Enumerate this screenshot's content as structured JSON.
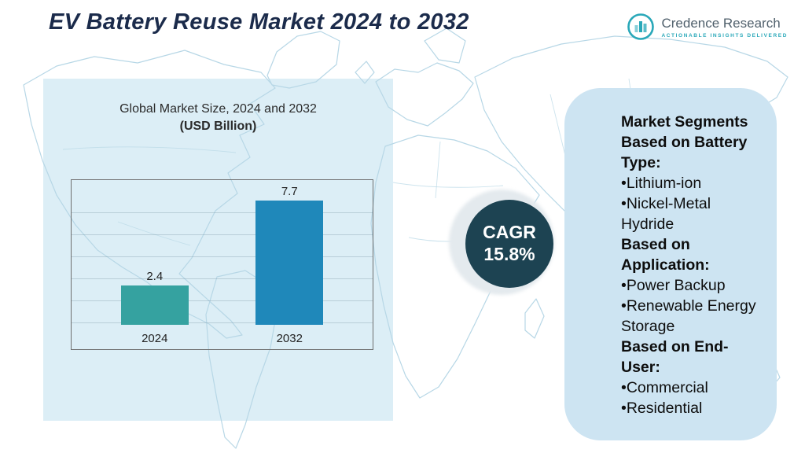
{
  "title": "EV Battery Reuse Market 2024 to 2032",
  "brand": {
    "name": "Credence Research",
    "tagline": "Actionable Insights Delivered"
  },
  "chart_data": {
    "type": "bar",
    "title": "Global Market Size, 2024 and 2032",
    "subtitle": "(USD Billion)",
    "categories": [
      "2024",
      "2032"
    ],
    "values": [
      2.4,
      7.7
    ],
    "value_labels": [
      "2.4",
      "7.7"
    ],
    "xlabel": "",
    "ylabel": "",
    "ylim": [
      0,
      8.5
    ],
    "grid": true,
    "legend": false,
    "bar_colors": [
      "#35a2a0",
      "#1f88ba"
    ]
  },
  "cagr": {
    "label": "CAGR",
    "value": "15.8%"
  },
  "segments_panel": {
    "items": [
      {
        "text": "Market Segments Based on Battery Type:",
        "bold": true
      },
      {
        "text": "•Lithium-ion",
        "bold": false
      },
      {
        "text": "•Nickel-Metal Hydride",
        "bold": false
      },
      {
        "text": "Based on Application:",
        "bold": true
      },
      {
        "text": "•Power Backup",
        "bold": false
      },
      {
        "text": "•Renewable Energy Storage",
        "bold": false
      },
      {
        "text": "Based on End-User:",
        "bold": true
      },
      {
        "text": "•Commercial",
        "bold": false
      },
      {
        "text": "•Residential",
        "bold": false
      }
    ]
  },
  "colors": {
    "title_navy": "#1b2b4b",
    "left_panel": "#dceef6",
    "right_panel": "#cde4f2",
    "cagr_circle": "#1d4352",
    "map_outline": "#b7d7e6",
    "brand_teal": "#29a8b9"
  }
}
